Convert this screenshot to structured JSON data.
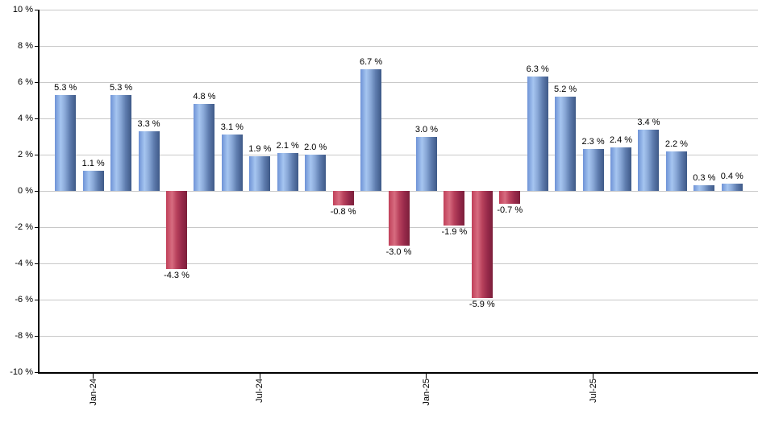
{
  "chart_data": {
    "type": "bar",
    "title": "",
    "unit": "%",
    "values": [
      5.3,
      1.1,
      5.3,
      3.3,
      -4.3,
      4.8,
      3.1,
      1.9,
      2.1,
      2.0,
      -0.8,
      6.7,
      -3.0,
      3.0,
      -1.9,
      -5.9,
      -0.7,
      6.3,
      5.2,
      2.3,
      2.4,
      3.4,
      2.2,
      0.3,
      0.4
    ],
    "bar_labels": [
      "5.3 %",
      "1.1 %",
      "5.3 %",
      "3.3 %",
      "-4.3 %",
      "4.8 %",
      "3.1 %",
      "1.9 %",
      "2.1 %",
      "2.0 %",
      "-0.8 %",
      "6.7 %",
      "-3.0 %",
      "3.0 %",
      "-1.9 %",
      "-5.9 %",
      "-0.7 %",
      "6.3 %",
      "5.2 %",
      "2.3 %",
      "2.4 %",
      "3.4 %",
      "2.2 %",
      "0.3 %",
      "0.4 %"
    ],
    "ylim": [
      -10,
      10
    ],
    "y_tick_step": 2,
    "y_tick_labels": [
      "10 %",
      "8 %",
      "6 %",
      "4 %",
      "2 %",
      "0 %",
      "-2 %",
      "-4 %",
      "-6 %",
      "-8 %",
      "-10 %"
    ],
    "x_ticks": [
      {
        "bar_index": 1,
        "label": "Jan-24"
      },
      {
        "bar_index": 7,
        "label": "Jul-24"
      },
      {
        "bar_index": 13,
        "label": "Jan-25"
      },
      {
        "bar_index": 19,
        "label": "Jul-25"
      }
    ],
    "grid": true,
    "legend": false,
    "colors": {
      "positive_bar": "#7fa3e0",
      "positive_bar_gradient": [
        [
          "#6e93d6",
          0
        ],
        [
          "#a6c5f0",
          28
        ],
        [
          "#8aa9d8",
          48
        ],
        [
          "#5f7daf",
          72
        ],
        [
          "#3e5987",
          100
        ]
      ],
      "negative_bar": "#c04059",
      "negative_bar_gradient": [
        [
          "#c04059",
          0
        ],
        [
          "#d76c80",
          28
        ],
        [
          "#b8415c",
          50
        ],
        [
          "#97294a",
          75
        ],
        [
          "#7c1f3b",
          100
        ]
      ],
      "gridline": "#c8c8c8",
      "axis": "#000000",
      "label_text": "#000000",
      "background": "#ffffff"
    }
  }
}
